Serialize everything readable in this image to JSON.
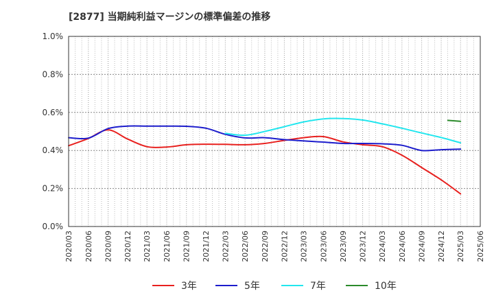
{
  "chart_data": {
    "type": "line",
    "title": "[2877]  当期純利益マージンの標準偏差の推移",
    "x_ticks": [
      "2020/03",
      "2020/06",
      "2020/09",
      "2020/12",
      "2021/03",
      "2021/06",
      "2021/09",
      "2021/12",
      "2022/03",
      "2022/06",
      "2022/09",
      "2022/12",
      "2023/03",
      "2023/06",
      "2023/09",
      "2023/12",
      "2024/03",
      "2024/06",
      "2024/09",
      "2024/12",
      "2025/03",
      "2025/06"
    ],
    "y_ticks": [
      "0.0%",
      "0.2%",
      "0.4%",
      "0.6%",
      "0.8%",
      "1.0%"
    ],
    "ylim": [
      0,
      1.0
    ],
    "grid": true,
    "legend_position": "bottom",
    "series": [
      {
        "name": "3年",
        "color": "#e8201e",
        "points": [
          [
            "2020/03",
            0.425
          ],
          [
            "2020/06",
            0.463
          ],
          [
            "2020/09",
            0.508
          ],
          [
            "2020/12",
            0.46
          ],
          [
            "2021/03",
            0.42
          ],
          [
            "2021/06",
            0.418
          ],
          [
            "2021/09",
            0.43
          ],
          [
            "2021/12",
            0.433
          ],
          [
            "2022/03",
            0.432
          ],
          [
            "2022/06",
            0.43
          ],
          [
            "2022/09",
            0.437
          ],
          [
            "2022/12",
            0.453
          ],
          [
            "2023/03",
            0.467
          ],
          [
            "2023/06",
            0.473
          ],
          [
            "2023/09",
            0.445
          ],
          [
            "2023/12",
            0.43
          ],
          [
            "2024/03",
            0.42
          ],
          [
            "2024/06",
            0.375
          ],
          [
            "2024/09",
            0.31
          ],
          [
            "2024/12",
            0.245
          ],
          [
            "2025/03",
            0.172
          ]
        ]
      },
      {
        "name": "5年",
        "color": "#1c1ccc",
        "points": [
          [
            "2020/03",
            0.467
          ],
          [
            "2020/06",
            0.465
          ],
          [
            "2020/09",
            0.515
          ],
          [
            "2020/12",
            0.528
          ],
          [
            "2021/03",
            0.528
          ],
          [
            "2021/06",
            0.528
          ],
          [
            "2021/09",
            0.527
          ],
          [
            "2021/12",
            0.517
          ],
          [
            "2022/03",
            0.485
          ],
          [
            "2022/06",
            0.466
          ],
          [
            "2022/09",
            0.467
          ],
          [
            "2022/12",
            0.457
          ],
          [
            "2023/03",
            0.45
          ],
          [
            "2023/06",
            0.444
          ],
          [
            "2023/09",
            0.437
          ],
          [
            "2023/12",
            0.437
          ],
          [
            "2024/03",
            0.435
          ],
          [
            "2024/06",
            0.427
          ],
          [
            "2024/09",
            0.4
          ],
          [
            "2024/12",
            0.404
          ],
          [
            "2025/03",
            0.407
          ]
        ]
      },
      {
        "name": "7年",
        "color": "#22e6ee",
        "points": [
          [
            "2022/03",
            0.49
          ],
          [
            "2022/06",
            0.48
          ],
          [
            "2022/09",
            0.5
          ],
          [
            "2022/12",
            0.525
          ],
          [
            "2023/03",
            0.55
          ],
          [
            "2023/06",
            0.566
          ],
          [
            "2023/09",
            0.568
          ],
          [
            "2023/12",
            0.56
          ],
          [
            "2024/03",
            0.54
          ],
          [
            "2024/06",
            0.517
          ],
          [
            "2024/09",
            0.492
          ],
          [
            "2024/12",
            0.468
          ],
          [
            "2025/03",
            0.44
          ]
        ]
      },
      {
        "name": "10年",
        "color": "#2a8a2a",
        "points": [
          [
            "2025/01",
            0.558
          ],
          [
            "2025/03",
            0.553
          ]
        ]
      }
    ]
  }
}
